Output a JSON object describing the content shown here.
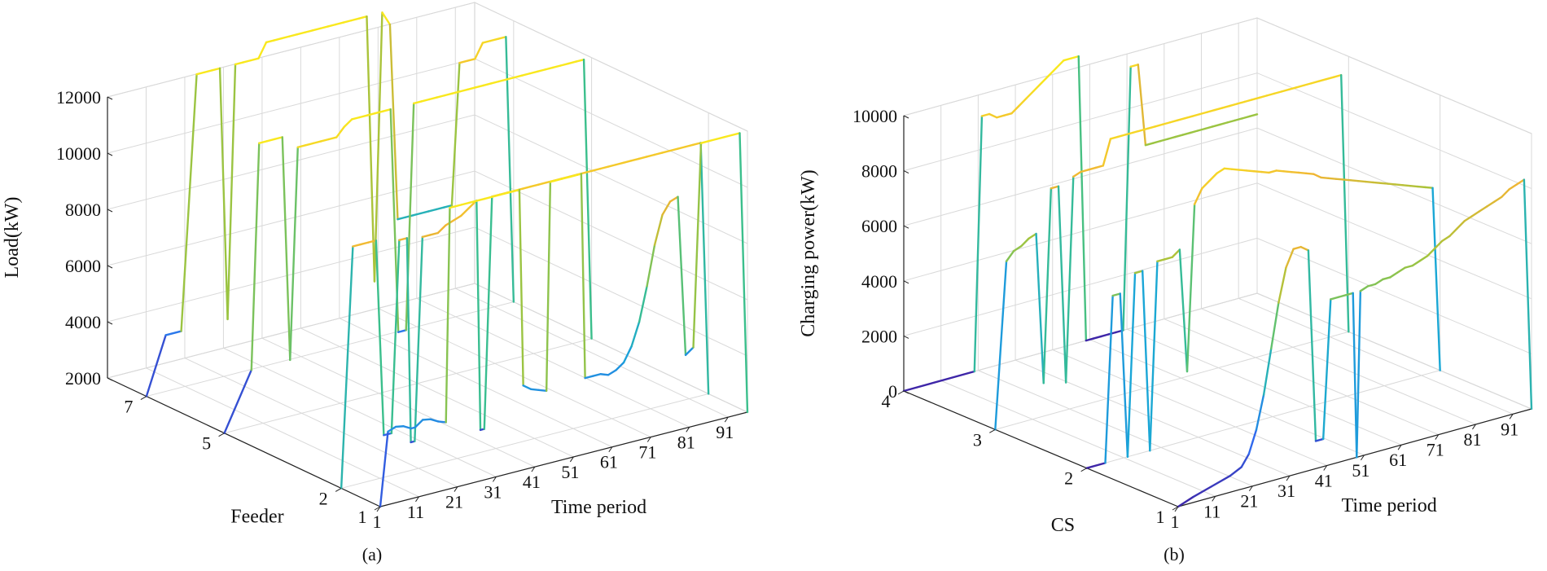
{
  "chart_data": [
    {
      "type": "line",
      "panel_label": "(a)",
      "title": "",
      "xlabel": "Time period",
      "ylabel": "Feeder",
      "zlabel": "Load(kW)",
      "x_ticks": [
        "1",
        "11",
        "21",
        "31",
        "41",
        "51",
        "61",
        "71",
        "81",
        "91"
      ],
      "y_ticks": [
        "1",
        "2",
        "5",
        "7"
      ],
      "z_ticks": [
        "2000",
        "4000",
        "6000",
        "8000",
        "10000",
        "12000"
      ],
      "xlim": [
        1,
        96
      ],
      "ylim": [
        1,
        8
      ],
      "zlim": [
        2000,
        12000
      ],
      "grid": true,
      "colormap": [
        "#3e26a8",
        "#2f6cf0",
        "#1aa7d6",
        "#3bbf8c",
        "#a6c43a",
        "#f0b534",
        "#f9e81e"
      ],
      "series": [
        {
          "feeder": 1,
          "x": [
            1,
            3,
            5,
            7,
            9,
            10,
            12,
            14,
            16,
            18,
            19,
            20,
            22,
            24,
            26,
            28,
            30,
            32,
            34,
            36,
            37,
            38,
            40,
            42,
            44,
            45,
            46,
            48,
            50,
            52,
            53,
            54,
            56,
            58,
            60,
            62,
            64,
            66,
            68,
            70,
            72,
            74,
            76,
            78,
            80,
            82,
            84,
            86,
            88,
            90,
            92,
            94,
            96
          ],
          "z": [
            2000,
            4600,
            4700,
            4650,
            4500,
            4500,
            4700,
            4650,
            4500,
            4400,
            12000,
            12000,
            12000,
            12000,
            12000,
            12000,
            12000,
            12000,
            12000,
            12000,
            12000,
            5000,
            4800,
            4700,
            4600,
            12000,
            12000,
            12000,
            12000,
            12000,
            12000,
            4700,
            4700,
            4700,
            4600,
            4700,
            4900,
            5400,
            6200,
            7400,
            8800,
            9800,
            10200,
            10300,
            4600,
            4800,
            12000,
            12000,
            12000,
            12000,
            12000,
            12000,
            2000
          ]
        },
        {
          "feeder": 2,
          "x": [
            1,
            4,
            6,
            8,
            10,
            12,
            14,
            16,
            18,
            19,
            20,
            22,
            24,
            26,
            28,
            30,
            32,
            34,
            36,
            37,
            38,
            40,
            42,
            44,
            46,
            48,
            50,
            52,
            54,
            56,
            58,
            60,
            62,
            64,
            66,
            68,
            70,
            72,
            74,
            76,
            78,
            80,
            82,
            84,
            86,
            88,
            90,
            92,
            94,
            96
          ],
          "z": [
            2000,
            10500,
            10500,
            10500,
            10500,
            3500,
            3500,
            10300,
            10300,
            3000,
            3000,
            10200,
            10200,
            10200,
            10400,
            10500,
            10600,
            10800,
            11000,
            2800,
            2800,
            11000,
            11000,
            11000,
            11000,
            11000,
            11000,
            11000,
            11000,
            11000,
            11000,
            11000,
            11000,
            11000,
            11000,
            11000,
            11000,
            11000,
            11000,
            11000,
            11000,
            11000,
            11000,
            11000,
            11000,
            11000,
            11000,
            11000,
            11000,
            2000
          ]
        },
        {
          "feeder": 5,
          "x": [
            1,
            8,
            10,
            12,
            14,
            16,
            18,
            20,
            22,
            24,
            26,
            28,
            30,
            32,
            34,
            36,
            38,
            40,
            42,
            44,
            46,
            48,
            50,
            52,
            54,
            56,
            58,
            60,
            62,
            64,
            66,
            68,
            70,
            72,
            74,
            76,
            78,
            80,
            82,
            84,
            86,
            88,
            90,
            92,
            94,
            96
          ],
          "z": [
            2000,
            4000,
            12000,
            12000,
            12000,
            12000,
            4000,
            11500,
            11500,
            11500,
            11500,
            11500,
            11500,
            11800,
            12000,
            12000,
            12000,
            12000,
            12000,
            12000,
            4000,
            4000,
            12000,
            12000,
            12000,
            12000,
            12000,
            12000,
            12000,
            12000,
            12000,
            12000,
            12000,
            12000,
            12000,
            12000,
            12000,
            12000,
            12000,
            12000,
            12000,
            12000,
            12000,
            12000,
            12000,
            2000
          ]
        },
        {
          "feeder": 7,
          "x": [
            1,
            6,
            10,
            14,
            16,
            18,
            20,
            22,
            24,
            26,
            28,
            30,
            32,
            34,
            36,
            38,
            40,
            42,
            44,
            46,
            48,
            50,
            52,
            54,
            56,
            58,
            60,
            62,
            64,
            66,
            68,
            70,
            72,
            74,
            76,
            78,
            80,
            82,
            84,
            86,
            88,
            90,
            92,
            94,
            96
          ],
          "z": [
            2000,
            4000,
            4000,
            13000,
            13000,
            13000,
            13000,
            4000,
            13000,
            13000,
            13000,
            13000,
            13500,
            13500,
            13500,
            13500,
            13500,
            13500,
            13500,
            13500,
            13500,
            13500,
            13500,
            13500,
            13500,
            13500,
            4000,
            13500,
            13000,
            6000,
            6000,
            6000,
            6000,
            6000,
            6000,
            6000,
            6000,
            11000,
            11000,
            11000,
            11500,
            11500,
            11500,
            11500,
            2000
          ]
        }
      ]
    },
    {
      "type": "line",
      "panel_label": "(b)",
      "title": "",
      "xlabel": "Time period",
      "ylabel": "CS",
      "zlabel": "Charging power(kW)",
      "x_ticks": [
        "1",
        "11",
        "21",
        "31",
        "41",
        "51",
        "61",
        "71",
        "81",
        "91"
      ],
      "y_ticks": [
        "1",
        "2",
        "3",
        "4"
      ],
      "z_ticks": [
        "0",
        "2000",
        "4000",
        "6000",
        "8000",
        "10000"
      ],
      "xlim": [
        1,
        96
      ],
      "ylim": [
        1,
        4
      ],
      "zlim": [
        0,
        10000
      ],
      "grid": true,
      "colormap": [
        "#3e26a8",
        "#2f6cf0",
        "#1aa7d6",
        "#3bbf8c",
        "#a6c43a",
        "#f0b534",
        "#f9e81e"
      ],
      "series": [
        {
          "cs": 1,
          "x": [
            1,
            5,
            10,
            15,
            18,
            20,
            22,
            24,
            26,
            28,
            30,
            32,
            34,
            36,
            38,
            40,
            42,
            44,
            46,
            48,
            49,
            50,
            52,
            54,
            56,
            58,
            60,
            62,
            64,
            66,
            68,
            70,
            72,
            74,
            76,
            78,
            80,
            82,
            84,
            86,
            88,
            90,
            92,
            94,
            96
          ],
          "z": [
            0,
            200,
            400,
            600,
            800,
            1200,
            2000,
            3200,
            4800,
            6400,
            7600,
            8200,
            8200,
            8000,
            1000,
            1000,
            6000,
            6000,
            6000,
            6000,
            0,
            6000,
            6100,
            6100,
            6200,
            6200,
            6300,
            6400,
            6400,
            6500,
            6600,
            6800,
            7000,
            7100,
            7300,
            7500,
            7600,
            7700,
            7800,
            7900,
            8000,
            8200,
            8300,
            8400,
            0
          ]
        },
        {
          "cs": 2,
          "x": [
            1,
            6,
            8,
            10,
            12,
            14,
            16,
            18,
            20,
            22,
            24,
            26,
            28,
            30,
            32,
            34,
            36,
            38,
            40,
            42,
            44,
            46,
            48,
            50,
            52,
            54,
            56,
            58,
            60,
            62,
            64,
            66,
            68,
            70,
            72,
            74,
            76,
            78,
            80,
            82,
            84,
            86,
            88,
            90,
            92,
            94,
            96
          ],
          "z": [
            0,
            0,
            6000,
            6000,
            0,
            6600,
            6600,
            0,
            6800,
            6800,
            6800,
            7000,
            2500,
            8500,
            9000,
            9200,
            9400,
            9500,
            9400,
            9300,
            9200,
            9100,
            9000,
            8900,
            8900,
            8800,
            8700,
            8600,
            8500,
            8400,
            8200,
            8100,
            8000,
            7900,
            7800,
            7700,
            7600,
            7500,
            7400,
            7300,
            7200,
            7100,
            7000,
            6900,
            6800,
            6700,
            0
          ]
        },
        {
          "cs": 3,
          "x": [
            1,
            4,
            6,
            8,
            10,
            12,
            14,
            16,
            18,
            20,
            22,
            24,
            26,
            28,
            30,
            32,
            34,
            36,
            38,
            40,
            42,
            44,
            46,
            48,
            50,
            52,
            54,
            56,
            58,
            60,
            62,
            64,
            66,
            68,
            70,
            72,
            74,
            76,
            78,
            80,
            82,
            84,
            86,
            88,
            90,
            92,
            94,
            96
          ],
          "z": [
            0,
            6000,
            6300,
            6400,
            6600,
            6700,
            1200,
            8200,
            8200,
            1000,
            8400,
            8500,
            8500,
            8500,
            8500,
            9400,
            9400,
            9400,
            9400,
            9400,
            9400,
            9400,
            9400,
            9400,
            9400,
            9400,
            9400,
            9400,
            9400,
            9400,
            9400,
            9400,
            9400,
            9400,
            9400,
            9400,
            9400,
            9400,
            9400,
            9400,
            9400,
            9400,
            9400,
            9400,
            9400,
            9400,
            9400,
            0
          ]
        },
        {
          "cs": 4,
          "x": [
            1,
            20,
            22,
            24,
            26,
            28,
            30,
            32,
            34,
            36,
            38,
            40,
            42,
            44,
            46,
            48,
            50,
            52,
            54,
            56,
            58,
            60,
            62,
            64,
            66,
            68,
            70,
            72,
            74,
            76,
            78,
            80,
            82,
            84,
            86,
            88,
            90,
            92,
            94,
            96
          ],
          "z": [
            0,
            0,
            9200,
            9200,
            9000,
            9000,
            9000,
            9200,
            9400,
            9600,
            9800,
            10000,
            10200,
            10400,
            10400,
            10400,
            0,
            0,
            0,
            0,
            0,
            0,
            9500,
            9500,
            6500,
            6500,
            6500,
            6500,
            6500,
            6500,
            6500,
            6500,
            6500,
            6500,
            6500,
            6500,
            6500,
            6500,
            6500,
            6500,
            6500,
            6500,
            6500,
            6500,
            6500,
            0
          ]
        }
      ]
    }
  ]
}
